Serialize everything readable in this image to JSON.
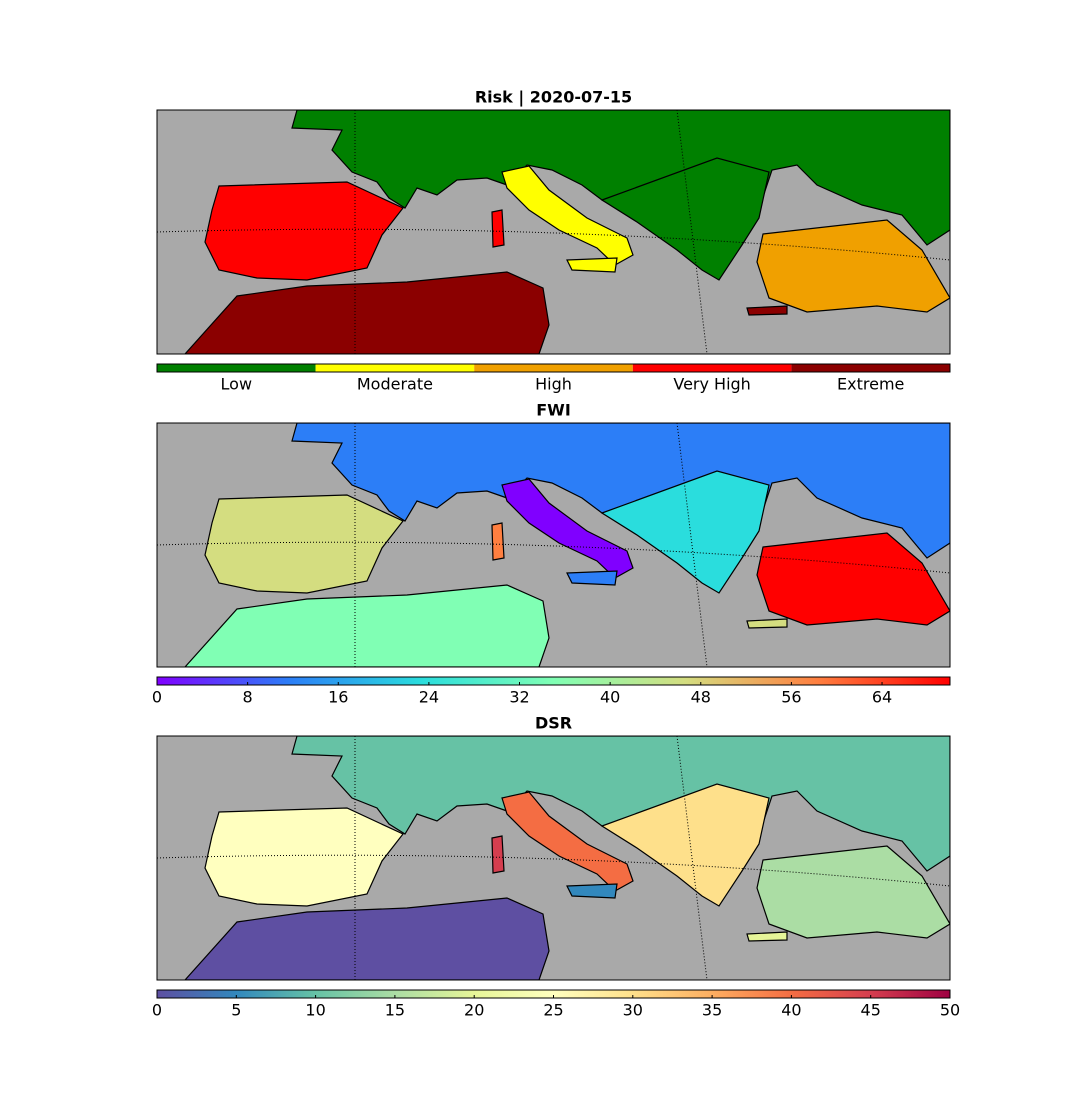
{
  "panels": [
    {
      "title": "Risk | 2020-07-15",
      "colorbar": {
        "type": "categorical",
        "categories": [
          "Low",
          "Moderate",
          "High",
          "Very High",
          "Extreme"
        ],
        "colors": [
          "#008000",
          "#ffff00",
          "#f0a000",
          "#ff0000",
          "#8b0000"
        ]
      }
    },
    {
      "title": "FWI",
      "colorbar": {
        "type": "continuous",
        "lim": [
          0,
          70
        ],
        "ticks": [
          0,
          8,
          16,
          24,
          32,
          40,
          48,
          56,
          64
        ],
        "colors": [
          "#8000ff",
          "#2c7ef7",
          "#2adddd",
          "#80ffb4",
          "#d4dd80",
          "#ff7f40",
          "#ff0000"
        ]
      }
    },
    {
      "title": "DSR",
      "colorbar": {
        "type": "continuous",
        "lim": [
          0,
          50
        ],
        "ticks": [
          0,
          5,
          10,
          15,
          20,
          25,
          30,
          35,
          40,
          45,
          50
        ],
        "colors": [
          "#5e4fa2",
          "#3288bd",
          "#66c2a5",
          "#abdda4",
          "#e6f598",
          "#ffffbf",
          "#fee08b",
          "#fdae61",
          "#f46d43",
          "#d53e4f",
          "#9e0142"
        ]
      }
    }
  ]
}
